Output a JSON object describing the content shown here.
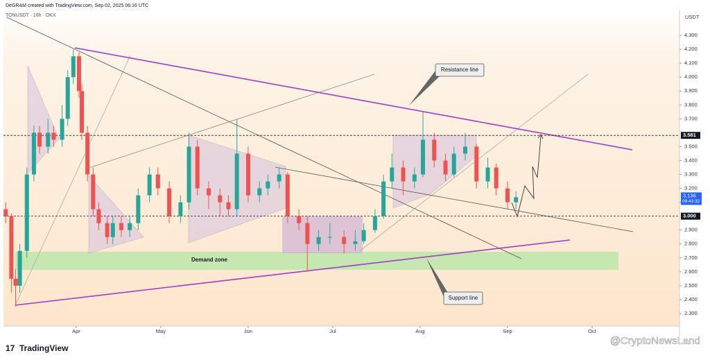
{
  "header": "DeGRAM created with TradingView.com, Sep 02, 2025 06:16 UTC",
  "symbol": "TONUSDT · 16h · OKX",
  "currency": "USDT",
  "brand": "TradingView",
  "watermark": "@CryptoNewsLand",
  "chart_data": {
    "type": "candlestick",
    "up_color": "#26a69a",
    "down_color": "#ef5350",
    "xlim": [
      65.2,
      305
    ],
    "xticks": [
      {
        "value": 91,
        "label": "Apr"
      },
      {
        "value": 121,
        "label": "May"
      },
      {
        "value": 152,
        "label": "Jun"
      },
      {
        "value": 182,
        "label": "Jul"
      },
      {
        "value": 213,
        "label": "Aug"
      },
      {
        "value": 244,
        "label": "Sep"
      },
      {
        "value": 274,
        "label": "Oct"
      }
    ],
    "ylim": [
      2.21,
      4.48
    ],
    "yticks": [
      {
        "value": 2.3,
        "label": "2.300"
      },
      {
        "value": 2.4,
        "label": "2.400"
      },
      {
        "value": 2.5,
        "label": "2.500"
      },
      {
        "value": 2.6,
        "label": "2.600"
      },
      {
        "value": 2.7,
        "label": "2.700"
      },
      {
        "value": 2.8,
        "label": "2.800"
      },
      {
        "value": 2.9,
        "label": "2.900"
      },
      {
        "value": 3.1,
        "label": "3.100"
      },
      {
        "value": 3.2,
        "label": "3.200"
      },
      {
        "value": 3.3,
        "label": "3.300"
      },
      {
        "value": 3.4,
        "label": "3.400"
      },
      {
        "value": 3.5,
        "label": "3.500"
      },
      {
        "value": 3.7,
        "label": "3.700"
      },
      {
        "value": 3.8,
        "label": "3.800"
      },
      {
        "value": 3.9,
        "label": "3.900"
      },
      {
        "value": 4.0,
        "label": "4.000"
      },
      {
        "value": 4.1,
        "label": "4.100"
      },
      {
        "value": 4.2,
        "label": "4.200"
      },
      {
        "value": 4.3,
        "label": "4.300"
      }
    ],
    "price_lines": [
      {
        "value": 3.581,
        "label": "3.581"
      },
      {
        "value": 3.0,
        "label": "3.000"
      }
    ],
    "last_price": {
      "value": 3.136,
      "label": "3.136",
      "countdown": "09:43:32"
    },
    "annotations": [
      "Resistance line",
      "Demand zone",
      "Support line"
    ],
    "candles": [
      [
        66,
        3.05,
        3.1,
        2.95,
        3.0
      ],
      [
        68,
        3.0,
        3.02,
        2.45,
        2.55
      ],
      [
        69.5,
        2.55,
        2.62,
        2.35,
        2.5
      ],
      [
        71,
        2.5,
        2.8,
        2.45,
        2.75
      ],
      [
        73.5,
        2.75,
        3.35,
        2.7,
        3.3
      ],
      [
        76,
        3.3,
        3.65,
        3.25,
        3.6
      ],
      [
        78,
        3.6,
        3.65,
        3.45,
        3.5
      ],
      [
        81,
        3.5,
        3.7,
        3.45,
        3.6
      ],
      [
        83,
        3.6,
        3.65,
        3.5,
        3.55
      ],
      [
        86,
        3.55,
        3.8,
        3.5,
        3.7
      ],
      [
        88,
        3.7,
        4.05,
        3.65,
        4.0
      ],
      [
        90,
        4.0,
        4.2,
        3.95,
        4.15
      ],
      [
        92,
        4.15,
        4.18,
        3.85,
        3.9
      ],
      [
        93,
        3.9,
        3.95,
        3.55,
        3.6
      ],
      [
        95,
        3.6,
        3.65,
        3.25,
        3.3
      ],
      [
        97,
        3.3,
        3.35,
        3.0,
        3.05
      ],
      [
        99,
        3.05,
        3.1,
        2.9,
        2.95
      ],
      [
        102,
        2.95,
        3.0,
        2.8,
        2.85
      ],
      [
        104,
        2.85,
        3.0,
        2.8,
        2.95
      ],
      [
        107,
        2.95,
        3.0,
        2.85,
        2.9
      ],
      [
        110,
        2.9,
        3.0,
        2.85,
        2.95
      ],
      [
        113,
        2.95,
        3.2,
        2.9,
        3.15
      ],
      [
        117,
        3.15,
        3.35,
        3.1,
        3.3
      ],
      [
        120,
        3.3,
        3.35,
        3.15,
        3.2
      ],
      [
        124,
        3.2,
        3.25,
        2.95,
        3.0
      ],
      [
        128,
        3.0,
        3.15,
        2.95,
        3.1
      ],
      [
        131,
        3.1,
        3.6,
        3.05,
        3.5
      ],
      [
        134,
        3.5,
        3.55,
        3.15,
        3.2
      ],
      [
        138,
        3.2,
        3.25,
        3.05,
        3.15
      ],
      [
        142,
        3.15,
        3.2,
        3.0,
        3.1
      ],
      [
        145,
        3.1,
        3.15,
        3.0,
        3.05
      ],
      [
        148,
        3.05,
        3.7,
        3.0,
        3.45
      ],
      [
        152,
        3.45,
        3.5,
        3.1,
        3.15
      ],
      [
        156,
        3.15,
        3.25,
        3.1,
        3.2
      ],
      [
        159,
        3.2,
        3.3,
        3.15,
        3.25
      ],
      [
        163,
        3.25,
        3.35,
        3.2,
        3.3
      ],
      [
        166,
        3.3,
        3.32,
        2.95,
        3.0
      ],
      [
        170,
        3.0,
        3.05,
        2.9,
        2.95
      ],
      [
        173,
        2.95,
        3.0,
        2.6,
        2.8
      ],
      [
        177,
        2.8,
        2.9,
        2.75,
        2.85
      ],
      [
        181,
        2.85,
        2.95,
        2.8,
        2.85
      ],
      [
        186,
        2.85,
        2.9,
        2.73,
        2.8
      ],
      [
        190,
        2.8,
        2.9,
        2.75,
        2.82
      ],
      [
        193,
        2.82,
        2.95,
        2.8,
        2.9
      ],
      [
        197,
        2.9,
        3.05,
        2.88,
        3.0
      ],
      [
        200,
        3.0,
        3.3,
        2.98,
        3.25
      ],
      [
        203,
        3.25,
        3.45,
        3.2,
        3.35
      ],
      [
        207,
        3.35,
        3.4,
        3.15,
        3.25
      ],
      [
        211,
        3.25,
        3.35,
        3.2,
        3.3
      ],
      [
        214,
        3.3,
        3.75,
        3.28,
        3.55
      ],
      [
        218,
        3.55,
        3.6,
        3.35,
        3.4
      ],
      [
        222,
        3.4,
        3.45,
        3.25,
        3.3
      ],
      [
        225,
        3.3,
        3.5,
        3.28,
        3.45
      ],
      [
        229,
        3.45,
        3.6,
        3.4,
        3.5
      ],
      [
        233,
        3.5,
        3.52,
        3.2,
        3.25
      ],
      [
        237,
        3.25,
        3.42,
        3.2,
        3.35
      ],
      [
        240,
        3.35,
        3.38,
        3.15,
        3.2
      ],
      [
        244,
        3.2,
        3.25,
        3.05,
        3.1
      ],
      [
        247,
        3.1,
        3.18,
        3.05,
        3.136
      ]
    ]
  }
}
